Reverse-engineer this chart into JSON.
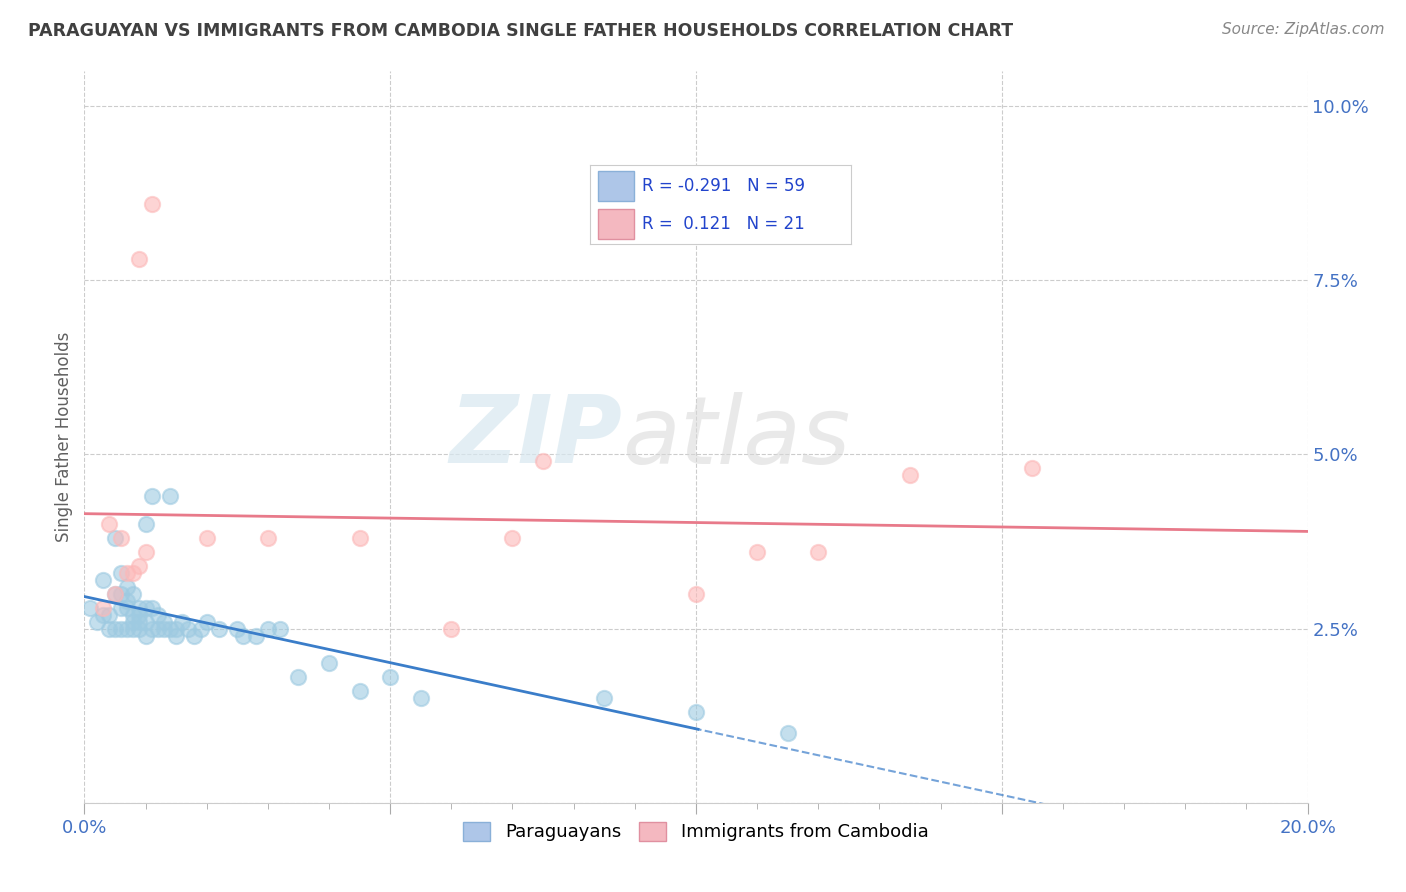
{
  "title": "PARAGUAYAN VS IMMIGRANTS FROM CAMBODIA SINGLE FATHER HOUSEHOLDS CORRELATION CHART",
  "source": "Source: ZipAtlas.com",
  "ylabel": "Single Father Households",
  "xlim": [
    0.0,
    0.2
  ],
  "ylim": [
    0.0,
    0.105
  ],
  "xticks": [
    0.0,
    0.05,
    0.1,
    0.15,
    0.2
  ],
  "xticklabels": [
    "0.0%",
    "",
    "",
    "",
    "20.0%"
  ],
  "yticks": [
    0.0,
    0.025,
    0.05,
    0.075,
    0.1
  ],
  "yticklabels": [
    "",
    "2.5%",
    "5.0%",
    "7.5%",
    "10.0%"
  ],
  "legend_labels": [
    "Paraguayans",
    "Immigrants from Cambodia"
  ],
  "R_blue": -0.291,
  "N_blue": 59,
  "R_pink": 0.121,
  "N_pink": 21,
  "blue_color": "#9ecae1",
  "pink_color": "#fcb8b8",
  "blue_line_color": "#3a7dc9",
  "pink_line_color": "#e87a8a",
  "blue_scatter": [
    [
      0.001,
      0.028
    ],
    [
      0.002,
      0.026
    ],
    [
      0.003,
      0.027
    ],
    [
      0.003,
      0.032
    ],
    [
      0.004,
      0.025
    ],
    [
      0.004,
      0.027
    ],
    [
      0.005,
      0.025
    ],
    [
      0.005,
      0.03
    ],
    [
      0.005,
      0.038
    ],
    [
      0.006,
      0.025
    ],
    [
      0.006,
      0.028
    ],
    [
      0.006,
      0.03
    ],
    [
      0.006,
      0.033
    ],
    [
      0.007,
      0.025
    ],
    [
      0.007,
      0.028
    ],
    [
      0.007,
      0.029
    ],
    [
      0.007,
      0.031
    ],
    [
      0.008,
      0.025
    ],
    [
      0.008,
      0.026
    ],
    [
      0.008,
      0.027
    ],
    [
      0.008,
      0.03
    ],
    [
      0.009,
      0.025
    ],
    [
      0.009,
      0.026
    ],
    [
      0.009,
      0.027
    ],
    [
      0.009,
      0.028
    ],
    [
      0.01,
      0.024
    ],
    [
      0.01,
      0.026
    ],
    [
      0.01,
      0.028
    ],
    [
      0.01,
      0.04
    ],
    [
      0.011,
      0.025
    ],
    [
      0.011,
      0.028
    ],
    [
      0.011,
      0.044
    ],
    [
      0.012,
      0.025
    ],
    [
      0.012,
      0.027
    ],
    [
      0.013,
      0.025
    ],
    [
      0.013,
      0.026
    ],
    [
      0.014,
      0.025
    ],
    [
      0.014,
      0.044
    ],
    [
      0.015,
      0.024
    ],
    [
      0.015,
      0.025
    ],
    [
      0.016,
      0.026
    ],
    [
      0.017,
      0.025
    ],
    [
      0.018,
      0.024
    ],
    [
      0.019,
      0.025
    ],
    [
      0.02,
      0.026
    ],
    [
      0.022,
      0.025
    ],
    [
      0.025,
      0.025
    ],
    [
      0.026,
      0.024
    ],
    [
      0.028,
      0.024
    ],
    [
      0.03,
      0.025
    ],
    [
      0.032,
      0.025
    ],
    [
      0.035,
      0.018
    ],
    [
      0.04,
      0.02
    ],
    [
      0.045,
      0.016
    ],
    [
      0.05,
      0.018
    ],
    [
      0.055,
      0.015
    ],
    [
      0.085,
      0.015
    ],
    [
      0.1,
      0.013
    ],
    [
      0.115,
      0.01
    ]
  ],
  "pink_scatter": [
    [
      0.003,
      0.028
    ],
    [
      0.004,
      0.04
    ],
    [
      0.005,
      0.03
    ],
    [
      0.006,
      0.038
    ],
    [
      0.007,
      0.033
    ],
    [
      0.008,
      0.033
    ],
    [
      0.009,
      0.034
    ],
    [
      0.009,
      0.078
    ],
    [
      0.01,
      0.036
    ],
    [
      0.011,
      0.086
    ],
    [
      0.02,
      0.038
    ],
    [
      0.03,
      0.038
    ],
    [
      0.045,
      0.038
    ],
    [
      0.06,
      0.025
    ],
    [
      0.07,
      0.038
    ],
    [
      0.075,
      0.049
    ],
    [
      0.1,
      0.03
    ],
    [
      0.11,
      0.036
    ],
    [
      0.12,
      0.036
    ],
    [
      0.135,
      0.047
    ],
    [
      0.155,
      0.048
    ]
  ],
  "watermark_zip": "ZIP",
  "watermark_atlas": "atlas",
  "background_color": "#ffffff",
  "grid_color": "#cccccc",
  "title_color": "#404040",
  "axis_label_color": "#606060",
  "tick_color": "#4472c4",
  "source_color": "#888888"
}
